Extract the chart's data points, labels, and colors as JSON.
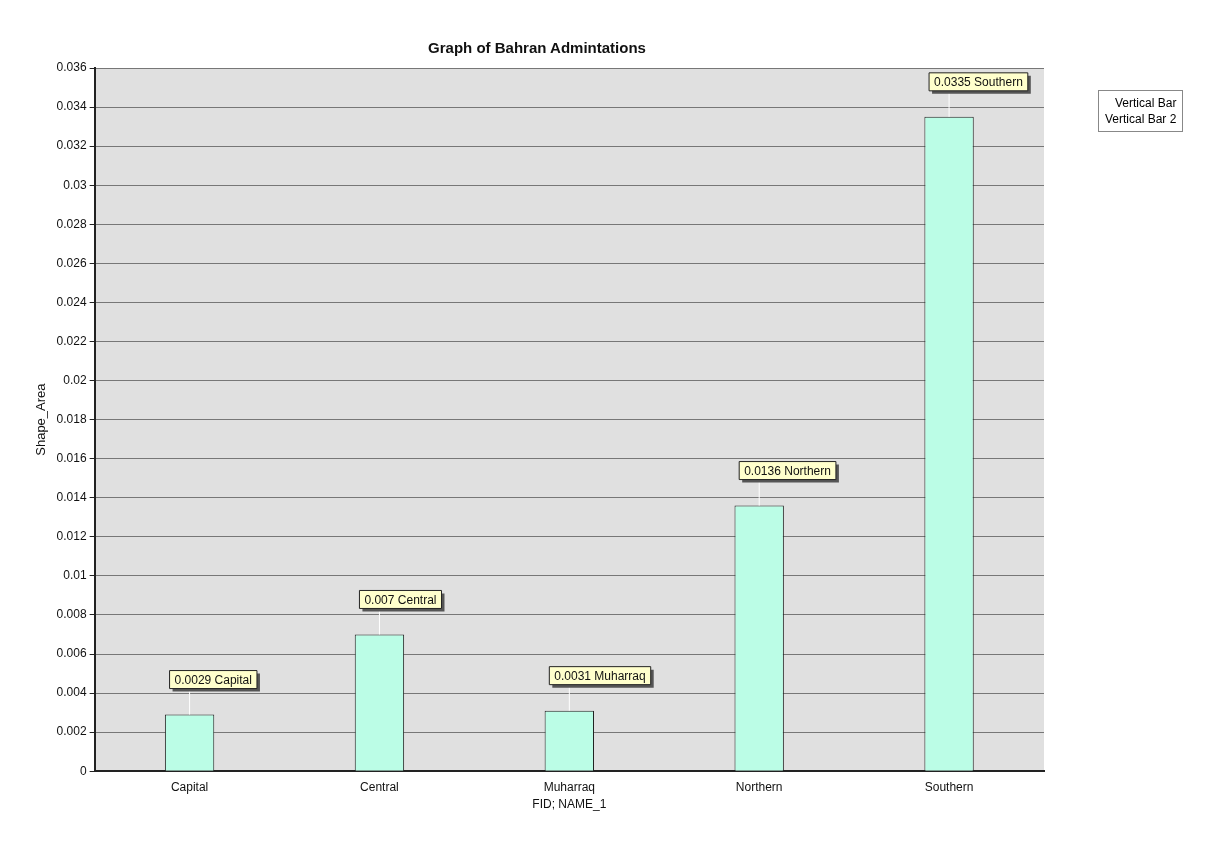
{
  "chart_data": {
    "type": "bar",
    "title": "Graph of Bahran Admintations",
    "xlabel": "FID; NAME_1",
    "ylabel": "Shape_Area",
    "categories": [
      "Capital",
      "Central",
      "Muharraq",
      "Northern",
      "Southern"
    ],
    "series": [
      {
        "name": "Vertical Bar",
        "color": "#bbfde6",
        "values": [
          0.0029,
          0.007,
          0.0031,
          0.0136,
          0.0335
        ],
        "value_labels": [
          "0.0029 Capital",
          "0.007 Central",
          "0.0031 Muharraq",
          "0.0136 Northern",
          "0.0335 Southern"
        ]
      },
      {
        "name": "Vertical Bar 2",
        "values": [
          null,
          null,
          null,
          null,
          null
        ]
      }
    ],
    "ylim": [
      0,
      0.036
    ],
    "yticks": [
      0,
      0.002,
      0.004,
      0.006,
      0.008,
      0.01,
      0.012,
      0.014,
      0.016,
      0.018,
      0.02,
      0.022,
      0.024,
      0.026,
      0.028,
      0.03,
      0.032,
      0.034,
      0.036
    ],
    "grid": "y",
    "legend": "top right"
  }
}
